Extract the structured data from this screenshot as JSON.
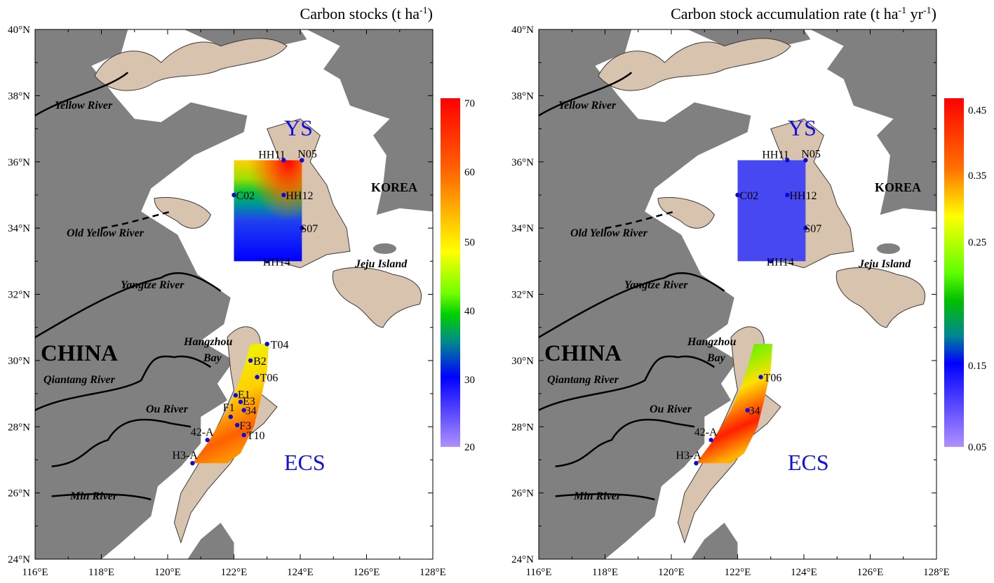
{
  "panels": [
    {
      "title": "Carbon stocks (t ha",
      "title_sup": "-1",
      "title_end": ")",
      "colorbar": {
        "ticks": [
          "70",
          "60",
          "50",
          "40",
          "30",
          "20"
        ]
      },
      "stations": [
        "HH11",
        "N05",
        "C02",
        "HH12",
        "S07",
        "HH14",
        "T04",
        "B2",
        "T06",
        "E1",
        "E3",
        "34",
        "F1",
        "F3",
        "T10",
        "42-A",
        "H3-A"
      ]
    },
    {
      "title": "Carbon stock accumulation rate (t ha",
      "title_sup": "-1",
      "title_mid": " yr",
      "title_sup2": "-1",
      "title_end": ")",
      "colorbar": {
        "ticks": [
          "0.45",
          "0.35",
          "0.25",
          "0.15",
          "0.05"
        ]
      },
      "stations": [
        "HH11",
        "N05",
        "C02",
        "HH12",
        "S07",
        "HH14",
        "T06",
        "34",
        "42-A",
        "H3-A"
      ]
    }
  ],
  "axes": {
    "lat_labels": [
      "40°N",
      "38°N",
      "36°N",
      "34°N",
      "32°N",
      "30°N",
      "28°N",
      "26°N",
      "24°N"
    ],
    "lon_labels": [
      "116°E",
      "118°E",
      "120°E",
      "122°E",
      "124°E",
      "126°E",
      "128°E"
    ]
  },
  "places": {
    "yellow_river": "Yellow River",
    "old_yellow_river": "Old Yellow River",
    "yangtze_river": "Yangtze River",
    "hangzhou": "Hangzhou",
    "bay": "Bay",
    "qiantang_river": "Qiantang River",
    "ou_river": "Ou River",
    "min_river": "Min River",
    "china": "CHINA",
    "korea": "KOREA",
    "jeju": "Jeju Island",
    "ys": "YS",
    "ecs": "ECS"
  },
  "colors": {
    "land": "#808080",
    "mud": "#d8c3ae",
    "station": "#0a0ae0",
    "sea_label": "#1010e0"
  }
}
